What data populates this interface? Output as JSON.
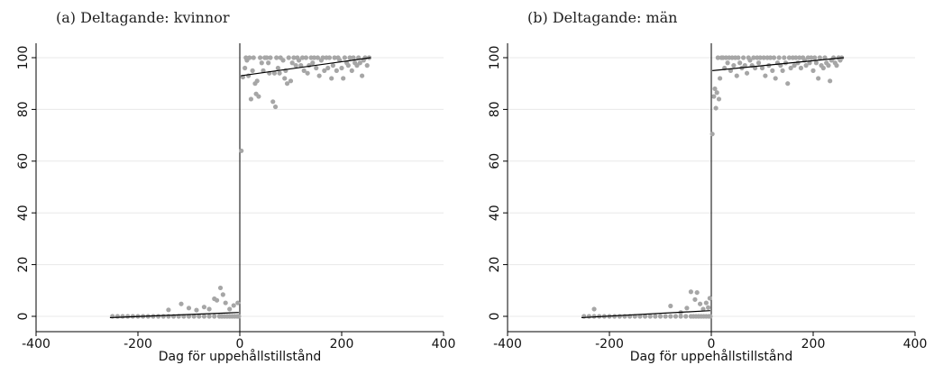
{
  "chart_data": [
    {
      "type": "scatter",
      "title": "(a) Deltagande: kvinnor",
      "xlabel": "Dag för uppehållstillstånd",
      "ylabel": "",
      "xlim": [
        -400,
        400
      ],
      "ylim": [
        0,
        100
      ],
      "xticks": [
        -400,
        -200,
        0,
        200,
        400
      ],
      "yticks": [
        0,
        20,
        40,
        60,
        80,
        100
      ],
      "grid": true,
      "cutoff": 0,
      "point_color": "#a6a6a6",
      "line_color": "#000000",
      "points": [
        [
          -250,
          0
        ],
        [
          -240,
          0
        ],
        [
          -230,
          0
        ],
        [
          -220,
          0
        ],
        [
          -210,
          0
        ],
        [
          -200,
          0
        ],
        [
          -190,
          0
        ],
        [
          -180,
          0
        ],
        [
          -170,
          0
        ],
        [
          -160,
          0
        ],
        [
          -150,
          0
        ],
        [
          -140,
          0
        ],
        [
          -130,
          0
        ],
        [
          -120,
          0
        ],
        [
          -110,
          0
        ],
        [
          -100,
          0
        ],
        [
          -90,
          0
        ],
        [
          -80,
          0
        ],
        [
          -70,
          0
        ],
        [
          -60,
          0
        ],
        [
          -50,
          0
        ],
        [
          -40,
          0
        ],
        [
          -35,
          0
        ],
        [
          -30,
          0
        ],
        [
          -25,
          0
        ],
        [
          -20,
          0
        ],
        [
          -15,
          0
        ],
        [
          -10,
          0
        ],
        [
          -5,
          0
        ],
        [
          -2,
          0
        ],
        [
          -140,
          2.5
        ],
        [
          -115,
          4.8
        ],
        [
          -100,
          3.2
        ],
        [
          -85,
          2.4
        ],
        [
          -70,
          3.6
        ],
        [
          -60,
          2.8
        ],
        [
          -50,
          6.8
        ],
        [
          -45,
          6.2
        ],
        [
          -38,
          11
        ],
        [
          -33,
          8.4
        ],
        [
          -28,
          5.2
        ],
        [
          -20,
          2.8
        ],
        [
          -12,
          4.2
        ],
        [
          -4,
          5.2
        ],
        [
          3,
          64
        ],
        [
          6,
          92.5
        ],
        [
          10,
          96
        ],
        [
          12,
          100
        ],
        [
          14,
          99
        ],
        [
          17,
          93
        ],
        [
          19,
          100
        ],
        [
          22,
          84
        ],
        [
          25,
          95
        ],
        [
          27,
          100
        ],
        [
          30,
          90
        ],
        [
          32,
          86
        ],
        [
          34,
          91
        ],
        [
          37,
          85
        ],
        [
          40,
          100
        ],
        [
          43,
          98
        ],
        [
          46,
          95
        ],
        [
          49,
          100
        ],
        [
          53,
          100
        ],
        [
          56,
          98
        ],
        [
          58,
          94
        ],
        [
          60,
          100
        ],
        [
          65,
          83
        ],
        [
          68,
          94
        ],
        [
          70,
          81
        ],
        [
          72,
          100
        ],
        [
          75,
          96
        ],
        [
          78,
          94
        ],
        [
          80,
          100
        ],
        [
          85,
          99
        ],
        [
          88,
          92
        ],
        [
          90,
          95
        ],
        [
          93,
          90
        ],
        [
          96,
          100
        ],
        [
          100,
          91
        ],
        [
          103,
          98
        ],
        [
          106,
          100
        ],
        [
          110,
          97
        ],
        [
          113,
          100
        ],
        [
          116,
          99
        ],
        [
          120,
          97
        ],
        [
          123,
          100
        ],
        [
          126,
          95
        ],
        [
          130,
          100
        ],
        [
          133,
          94
        ],
        [
          136,
          97
        ],
        [
          140,
          100
        ],
        [
          143,
          98
        ],
        [
          146,
          100
        ],
        [
          150,
          96
        ],
        [
          153,
          100
        ],
        [
          156,
          93
        ],
        [
          160,
          99
        ],
        [
          163,
          100
        ],
        [
          166,
          95
        ],
        [
          170,
          100
        ],
        [
          173,
          96
        ],
        [
          176,
          100
        ],
        [
          180,
          92
        ],
        [
          183,
          97
        ],
        [
          186,
          100
        ],
        [
          190,
          95
        ],
        [
          193,
          100
        ],
        [
          196,
          99
        ],
        [
          200,
          96
        ],
        [
          203,
          92
        ],
        [
          206,
          100
        ],
        [
          210,
          98
        ],
        [
          213,
          97
        ],
        [
          216,
          100
        ],
        [
          220,
          95
        ],
        [
          223,
          100
        ],
        [
          226,
          98
        ],
        [
          230,
          97
        ],
        [
          233,
          100
        ],
        [
          236,
          98
        ],
        [
          240,
          93
        ],
        [
          243,
          99
        ],
        [
          246,
          100
        ],
        [
          250,
          97
        ],
        [
          254,
          100
        ]
      ],
      "fit_lines": [
        {
          "x": [
            -255,
            -2
          ],
          "y": [
            -0.5,
            1.5
          ]
        },
        {
          "x": [
            2,
            257
          ],
          "y": [
            93,
            100
          ]
        }
      ]
    },
    {
      "type": "scatter",
      "title": "(b) Deltagande: män",
      "xlabel": "Dag för uppehållstillstånd",
      "ylabel": "",
      "xlim": [
        -400,
        400
      ],
      "ylim": [
        0,
        100
      ],
      "xticks": [
        -400,
        -200,
        0,
        200,
        400
      ],
      "yticks": [
        0,
        20,
        40,
        60,
        80,
        100
      ],
      "grid": true,
      "cutoff": 0,
      "point_color": "#a6a6a6",
      "line_color": "#000000",
      "points": [
        [
          -250,
          0
        ],
        [
          -240,
          0
        ],
        [
          -230,
          0
        ],
        [
          -220,
          0
        ],
        [
          -210,
          0
        ],
        [
          -200,
          0
        ],
        [
          -190,
          0
        ],
        [
          -180,
          0
        ],
        [
          -170,
          0
        ],
        [
          -160,
          0
        ],
        [
          -150,
          0
        ],
        [
          -140,
          0
        ],
        [
          -130,
          0
        ],
        [
          -120,
          0
        ],
        [
          -110,
          0
        ],
        [
          -100,
          0
        ],
        [
          -90,
          0
        ],
        [
          -80,
          0
        ],
        [
          -70,
          0
        ],
        [
          -60,
          0
        ],
        [
          -50,
          0
        ],
        [
          -40,
          0
        ],
        [
          -35,
          0
        ],
        [
          -30,
          0
        ],
        [
          -25,
          0
        ],
        [
          -20,
          0
        ],
        [
          -15,
          0
        ],
        [
          -10,
          0
        ],
        [
          -5,
          0
        ],
        [
          -2,
          0
        ],
        [
          -230,
          2.8
        ],
        [
          -80,
          4
        ],
        [
          -60,
          1.5
        ],
        [
          -48,
          3.2
        ],
        [
          -40,
          9.5
        ],
        [
          -32,
          6.5
        ],
        [
          -28,
          9.2
        ],
        [
          -22,
          4.8
        ],
        [
          -16,
          2.8
        ],
        [
          -10,
          5.2
        ],
        [
          -6,
          3.4
        ],
        [
          -3,
          7
        ],
        [
          2,
          70.5
        ],
        [
          5,
          85
        ],
        [
          7,
          88
        ],
        [
          9,
          80.5
        ],
        [
          11,
          86.5
        ],
        [
          13,
          100
        ],
        [
          15,
          84
        ],
        [
          17,
          92
        ],
        [
          20,
          100
        ],
        [
          23,
          100
        ],
        [
          26,
          96
        ],
        [
          29,
          100
        ],
        [
          32,
          98
        ],
        [
          35,
          100
        ],
        [
          38,
          95
        ],
        [
          41,
          100
        ],
        [
          44,
          97
        ],
        [
          47,
          100
        ],
        [
          50,
          93
        ],
        [
          53,
          100
        ],
        [
          56,
          98
        ],
        [
          60,
          96
        ],
        [
          63,
          100
        ],
        [
          66,
          97
        ],
        [
          70,
          94
        ],
        [
          73,
          100
        ],
        [
          76,
          99
        ],
        [
          80,
          97
        ],
        [
          83,
          100
        ],
        [
          86,
          96
        ],
        [
          90,
          100
        ],
        [
          93,
          98
        ],
        [
          96,
          100
        ],
        [
          100,
          96
        ],
        [
          103,
          100
        ],
        [
          106,
          93
        ],
        [
          110,
          100
        ],
        [
          113,
          97
        ],
        [
          116,
          100
        ],
        [
          120,
          95
        ],
        [
          123,
          100
        ],
        [
          126,
          92
        ],
        [
          130,
          98
        ],
        [
          133,
          100
        ],
        [
          136,
          97
        ],
        [
          140,
          95
        ],
        [
          143,
          100
        ],
        [
          146,
          98
        ],
        [
          150,
          90
        ],
        [
          153,
          100
        ],
        [
          156,
          96
        ],
        [
          160,
          100
        ],
        [
          163,
          97
        ],
        [
          166,
          100
        ],
        [
          170,
          98
        ],
        [
          173,
          100
        ],
        [
          176,
          96
        ],
        [
          180,
          100
        ],
        [
          183,
          99
        ],
        [
          186,
          97
        ],
        [
          190,
          100
        ],
        [
          193,
          98
        ],
        [
          196,
          100
        ],
        [
          200,
          95
        ],
        [
          203,
          100
        ],
        [
          206,
          98
        ],
        [
          210,
          92
        ],
        [
          213,
          100
        ],
        [
          216,
          97
        ],
        [
          220,
          96
        ],
        [
          223,
          100
        ],
        [
          226,
          98
        ],
        [
          230,
          97
        ],
        [
          233,
          91
        ],
        [
          236,
          99
        ],
        [
          240,
          100
        ],
        [
          243,
          98
        ],
        [
          246,
          97
        ],
        [
          250,
          100
        ],
        [
          253,
          99
        ],
        [
          256,
          100
        ]
      ],
      "fit_lines": [
        {
          "x": [
            -255,
            -2
          ],
          "y": [
            -0.5,
            2.2
          ]
        },
        {
          "x": [
            2,
            260
          ],
          "y": [
            95,
            100
          ]
        }
      ]
    }
  ]
}
